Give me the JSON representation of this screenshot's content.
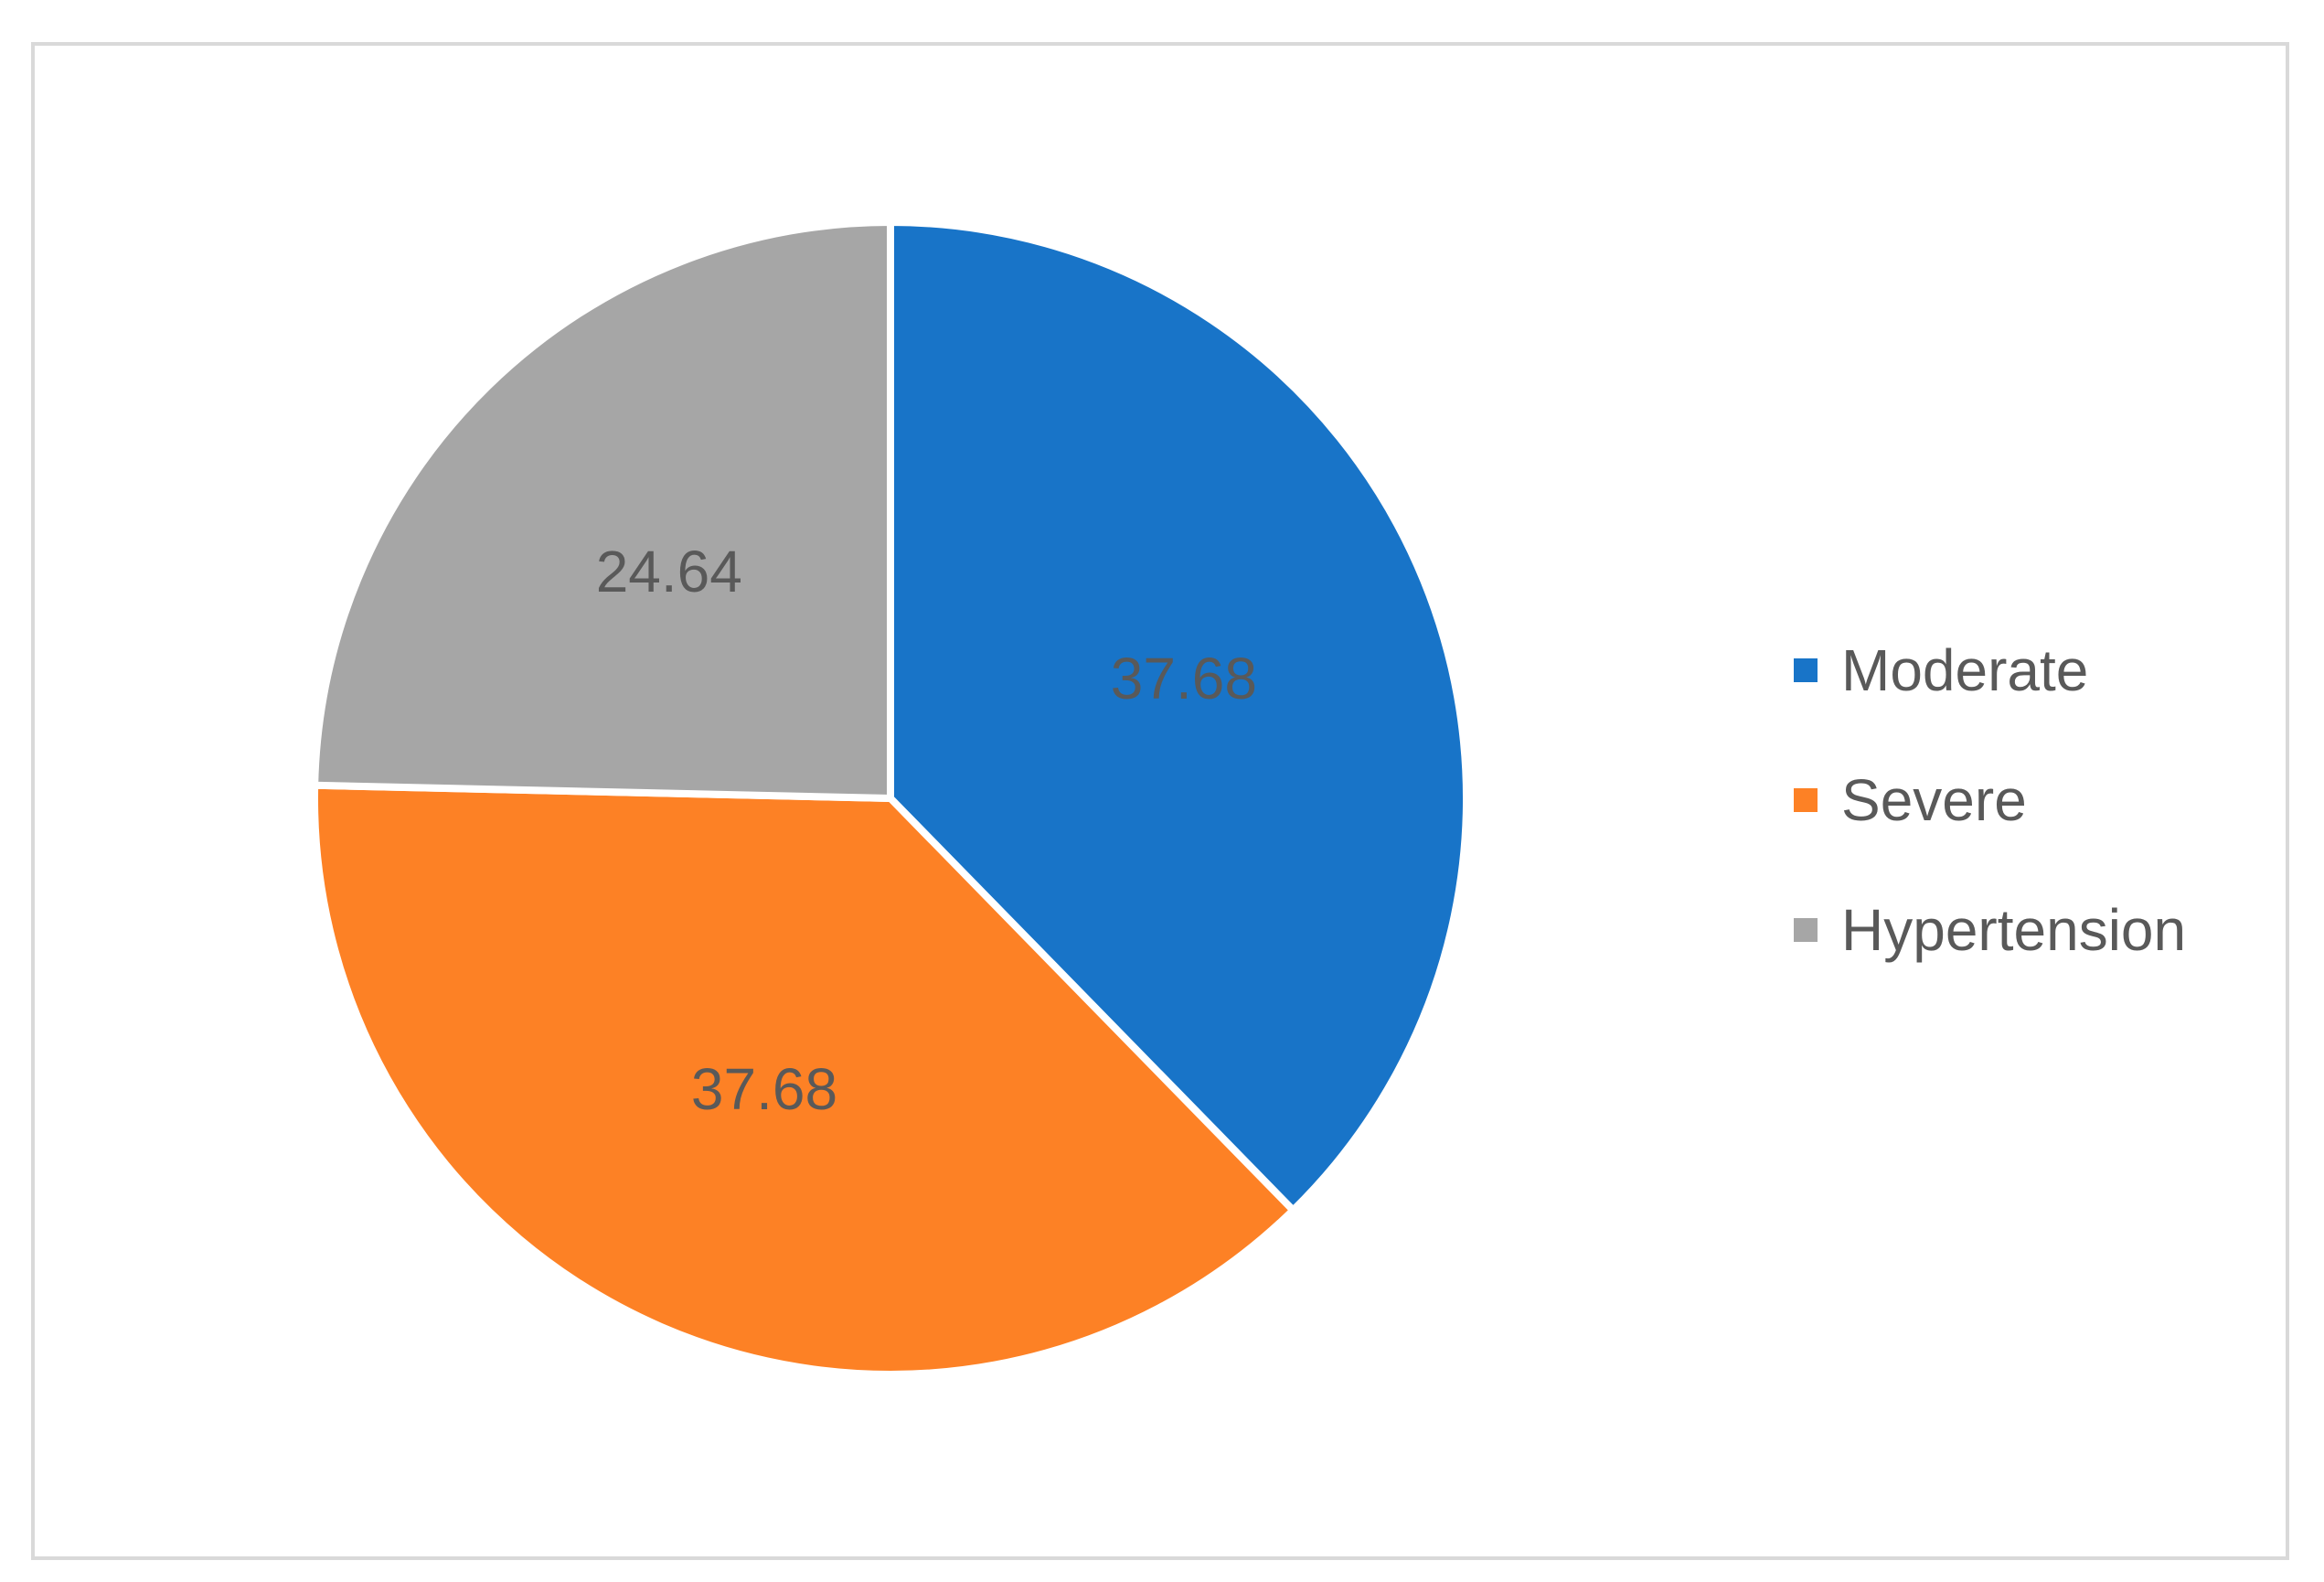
{
  "chart_data": {
    "type": "pie",
    "title": "",
    "categories": [
      "Moderate",
      "Severe",
      "Hypertension"
    ],
    "values": [
      37.68,
      37.68,
      24.64
    ],
    "data_labels": [
      "37.68",
      "37.68",
      "24.64"
    ],
    "colors": [
      "#1874c8",
      "#fd8125",
      "#a6a6a6"
    ],
    "start_angle_deg": 0,
    "direction": "clockwise",
    "legend": {
      "position": "right",
      "entries": [
        "Moderate",
        "Severe",
        "Hypertension"
      ]
    }
  }
}
